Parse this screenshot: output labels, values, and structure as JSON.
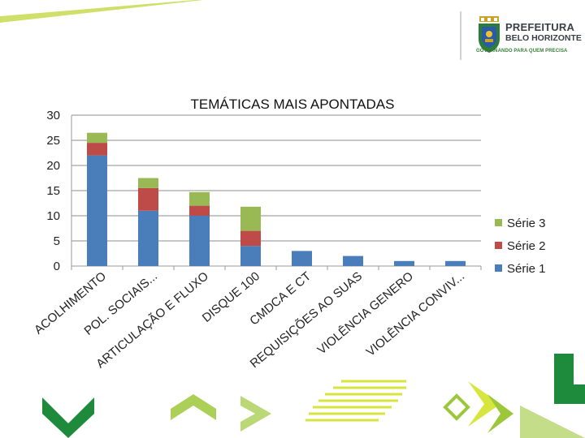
{
  "header": {
    "logo_title": "PREFEITURA",
    "logo_subtitle": "BELO HORIZONTE",
    "logo_slogan": "GOVERNANDO PARA QUEM PRECISA"
  },
  "colors": {
    "serie1": "#4a7ebb",
    "serie2": "#be4b48",
    "serie3": "#98b954",
    "green_dark": "#1e8a3c",
    "green_light": "#9cc73a",
    "yellow": "#e2ea4a"
  },
  "chart_data": {
    "type": "bar",
    "stacked": true,
    "title": "TEMÁTICAS MAIS APONTADAS",
    "xlabel": "",
    "ylabel": "",
    "ylim": [
      0,
      30
    ],
    "yticks": [
      0,
      5,
      10,
      15,
      20,
      25,
      30
    ],
    "grid": true,
    "legend_position": "right",
    "categories": [
      "ACOLHIMENTO",
      "POL. SOCIAIS...",
      "ARTICULAÇÃO E FLUXO",
      "DISQUE 100",
      "CMDCA E CT",
      "REQUISIÇÕES AO SUAS",
      "VIOLÊNCIA GENERO",
      "VIOLÊNCIA CONVIV..."
    ],
    "series": [
      {
        "name": "Série 1",
        "values": [
          22,
          11,
          10,
          4,
          3,
          2,
          1,
          1
        ]
      },
      {
        "name": "Série 2",
        "values": [
          2.5,
          4.5,
          2,
          3,
          0,
          0,
          0,
          0
        ]
      },
      {
        "name": "Série 3",
        "values": [
          2,
          2,
          2.7,
          4.8,
          0,
          0,
          0,
          0
        ]
      }
    ]
  }
}
